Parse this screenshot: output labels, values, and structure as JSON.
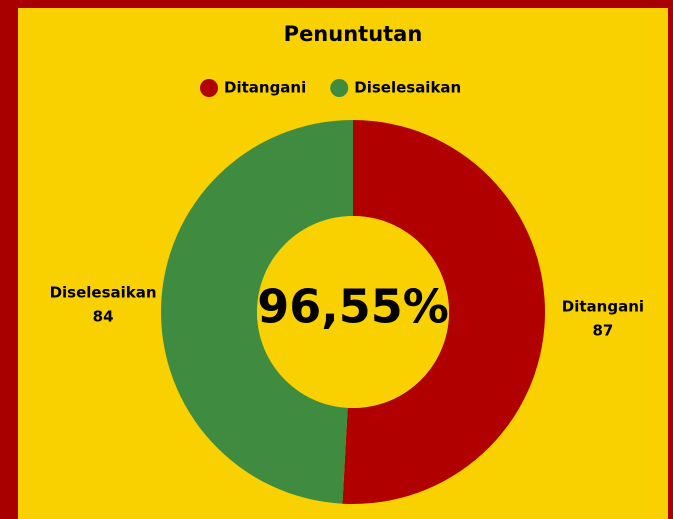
{
  "chart_data": {
    "type": "donut",
    "title": "Penuntutan",
    "categories": [
      "Ditangani",
      "Diselesaikan"
    ],
    "values": [
      87,
      84
    ],
    "colors": [
      "#b00000",
      "#3f8b3f"
    ],
    "center_label": "96,55%",
    "legend": "top"
  }
}
